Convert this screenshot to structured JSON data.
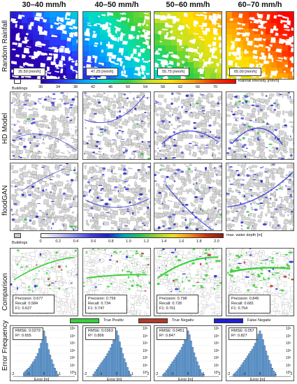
{
  "columns": [
    "30–40 mm/h",
    "40–50 mm/h",
    "50–60 mm/h",
    "60–70 mm/h"
  ],
  "rows": {
    "rainfall": "Random Rainfall",
    "hd": "HD Model",
    "floodgan": "floodGAN",
    "comparison": "Comparison",
    "error": "Error Frequency"
  },
  "rainfall_values": [
    "35.50 [mm/h]",
    "47.25 [mm/h]",
    "55.75 [mm/h]",
    "65.00 [mm/h]"
  ],
  "rain_legend": {
    "buildings": "Buildings",
    "ticks": [
      "30",
      "34",
      "38",
      "42",
      "46",
      "50",
      "54",
      "58",
      "62",
      "66",
      "70"
    ],
    "title": "Rainfall intensity [mm/h]"
  },
  "depth_legend": {
    "buildings": "Buildings",
    "ticks": [
      "0",
      "0.2",
      "0.4",
      "0.6",
      "0.8",
      "1.0",
      "1.2",
      "1.4",
      "1.6",
      "1.8",
      "2.0"
    ],
    "title": "max. water depth [m]"
  },
  "metrics": [
    {
      "precision": "Precision: 0.677",
      "recall": "Recall: 0.584",
      "f1": "F1: 0.627"
    },
    {
      "precision": "Precision: 0.759",
      "recall": "Recall: 0.734",
      "f1": "F1: 0.747"
    },
    {
      "precision": "Precision: 0.798",
      "recall": "Recall: 0.728",
      "f1": "F1: 0.761"
    },
    {
      "precision": "Precision: 0.845",
      "recall": "Recall: 0.681",
      "f1": "F1: 0.754"
    }
  ],
  "class_legend": {
    "tp": "True Positiv",
    "tn": "True Negativ",
    "fn": "False Negativ",
    "tp_color": "#3ad03a",
    "tn_color": "#b23a2a",
    "fn_color": "#1f1fd6"
  },
  "hist_stats": [
    {
      "rmse": "RMSE: 0.0279",
      "r2": "R²: 0.655"
    },
    {
      "rmse": "RMSE: 0.0363",
      "r2": "R²: 0.806"
    },
    {
      "rmse": "RMSE: 0.0451",
      "r2": "R²: 0.847"
    },
    {
      "rmse": "RMSE: 0.057",
      "r2": "R²: 0.827"
    }
  ],
  "hist_axis": {
    "xlabel": "Error [m]",
    "xticks": [
      "-2",
      "-1",
      "0",
      "1",
      "2"
    ],
    "yticks": [
      "10⁶",
      "10⁵",
      "10⁴",
      "10³",
      "10²",
      "10¹",
      "10⁰"
    ]
  },
  "chart_data": [
    {
      "type": "bar",
      "title": "30–40 mm/h",
      "xlabel": "Error [m]",
      "ylabel": "",
      "yscale": "log",
      "xlim": [
        -2,
        2
      ],
      "ylim": [
        1,
        1000000
      ],
      "x": [
        -1.3,
        -1.2,
        -1.1,
        -1.0,
        -0.9,
        -0.8,
        -0.7,
        -0.6,
        -0.5,
        -0.4,
        -0.3,
        -0.2,
        -0.1,
        0.0,
        0.1,
        0.2,
        0.3,
        0.4,
        0.5,
        0.6,
        0.7,
        0.8,
        0.9,
        1.0
      ],
      "values": [
        3,
        5,
        8,
        12,
        20,
        40,
        80,
        160,
        400,
        1000,
        4000,
        20000,
        150000,
        800000,
        150000,
        20000,
        3000,
        600,
        150,
        40,
        12,
        5,
        2,
        1
      ]
    },
    {
      "type": "bar",
      "title": "40–50 mm/h",
      "xlabel": "Error [m]",
      "ylabel": "",
      "yscale": "log",
      "xlim": [
        -2,
        2
      ],
      "ylim": [
        1,
        1000000
      ],
      "x": [
        -1.5,
        -1.4,
        -1.3,
        -1.2,
        -1.1,
        -1.0,
        -0.9,
        -0.8,
        -0.7,
        -0.6,
        -0.5,
        -0.4,
        -0.3,
        -0.2,
        -0.1,
        0.0,
        0.1,
        0.2,
        0.3,
        0.4,
        0.5,
        0.6,
        0.7,
        0.8,
        0.9,
        1.0
      ],
      "values": [
        2,
        4,
        8,
        15,
        30,
        60,
        110,
        200,
        400,
        900,
        2000,
        5000,
        15000,
        60000,
        300000,
        800000,
        200000,
        30000,
        5000,
        900,
        200,
        60,
        15,
        5,
        2,
        1
      ]
    },
    {
      "type": "bar",
      "title": "50–60 mm/h",
      "xlabel": "Error [m]",
      "ylabel": "",
      "yscale": "log",
      "xlim": [
        -2,
        2
      ],
      "ylim": [
        1,
        1000000
      ],
      "x": [
        -1.6,
        -1.5,
        -1.4,
        -1.3,
        -1.2,
        -1.1,
        -1.0,
        -0.9,
        -0.8,
        -0.7,
        -0.6,
        -0.5,
        -0.4,
        -0.3,
        -0.2,
        -0.1,
        0.0,
        0.1,
        0.2,
        0.3,
        0.4,
        0.5,
        0.6,
        0.7,
        0.8,
        0.9,
        1.0,
        1.1
      ],
      "values": [
        2,
        3,
        6,
        10,
        20,
        40,
        80,
        150,
        300,
        600,
        1200,
        2500,
        6000,
        15000,
        60000,
        300000,
        800000,
        250000,
        40000,
        6000,
        1200,
        300,
        80,
        25,
        8,
        3,
        2,
        1
      ]
    },
    {
      "type": "bar",
      "title": "60–70 mm/h",
      "xlabel": "Error [m]",
      "ylabel": "",
      "yscale": "log",
      "xlim": [
        -2,
        2
      ],
      "ylim": [
        1,
        1000000
      ],
      "x": [
        -1.7,
        -1.6,
        -1.5,
        -1.4,
        -1.3,
        -1.2,
        -1.1,
        -1.0,
        -0.9,
        -0.8,
        -0.7,
        -0.6,
        -0.5,
        -0.4,
        -0.3,
        -0.2,
        -0.1,
        0.0,
        0.1,
        0.2,
        0.3,
        0.4,
        0.5,
        0.6,
        0.7,
        0.8,
        0.9,
        1.0,
        1.1,
        1.2
      ],
      "values": [
        2,
        3,
        5,
        9,
        15,
        30,
        60,
        120,
        220,
        450,
        900,
        1800,
        3500,
        8000,
        20000,
        70000,
        300000,
        800000,
        300000,
        60000,
        10000,
        2000,
        500,
        120,
        40,
        12,
        5,
        2,
        1,
        1
      ]
    }
  ]
}
